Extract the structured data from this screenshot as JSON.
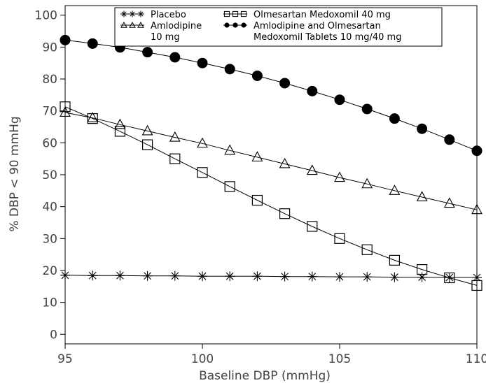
{
  "chart_data": {
    "type": "line",
    "title": "",
    "xlabel": "Baseline DBP (mmHg)",
    "ylabel": "% DBP < 90 mmHg",
    "xlim": [
      95,
      110
    ],
    "ylim": [
      -3,
      103
    ],
    "xticks": [
      95,
      100,
      105,
      110
    ],
    "yticks": [
      0,
      10,
      20,
      30,
      40,
      50,
      60,
      70,
      80,
      90,
      100
    ],
    "grid": false,
    "legend_position": "top",
    "x": [
      95,
      96,
      97,
      98,
      99,
      100,
      101,
      102,
      103,
      104,
      105,
      106,
      107,
      108,
      109,
      110
    ],
    "series": [
      {
        "name": "Placebo",
        "marker": "asterisk",
        "values": [
          18.5,
          18.4,
          18.4,
          18.3,
          18.3,
          18.2,
          18.2,
          18.2,
          18.1,
          18.1,
          18.0,
          18.0,
          17.9,
          17.9,
          17.8,
          17.8
        ]
      },
      {
        "name": "Amlodipine 10 mg",
        "name_lines": [
          "Amlodipine",
          "10 mg"
        ],
        "marker": "triangle",
        "values": [
          69.5,
          67.8,
          65.7,
          63.7,
          61.7,
          59.8,
          57.6,
          55.5,
          53.4,
          51.3,
          49.1,
          47.1,
          45.0,
          43.0,
          41.0,
          39.0
        ]
      },
      {
        "name": "Olmesartan Medoxomil 40 mg",
        "marker": "square",
        "values": [
          71.3,
          67.6,
          63.6,
          59.4,
          55.0,
          50.7,
          46.3,
          42.0,
          37.8,
          33.8,
          30.0,
          26.5,
          23.2,
          20.3,
          17.7,
          15.3
        ]
      },
      {
        "name": "Amlodipine and Olmesartan Medoxomil Tablets 10 mg/40 mg",
        "name_lines": [
          "Amlodipine and Olmesartan",
          "Medoxomil Tablets 10 mg/40 mg"
        ],
        "marker": "circle",
        "values": [
          92.2,
          91.1,
          89.9,
          88.4,
          86.8,
          85.0,
          83.1,
          81.0,
          78.7,
          76.2,
          73.5,
          70.6,
          67.6,
          64.4,
          61.0,
          57.5
        ]
      }
    ]
  }
}
